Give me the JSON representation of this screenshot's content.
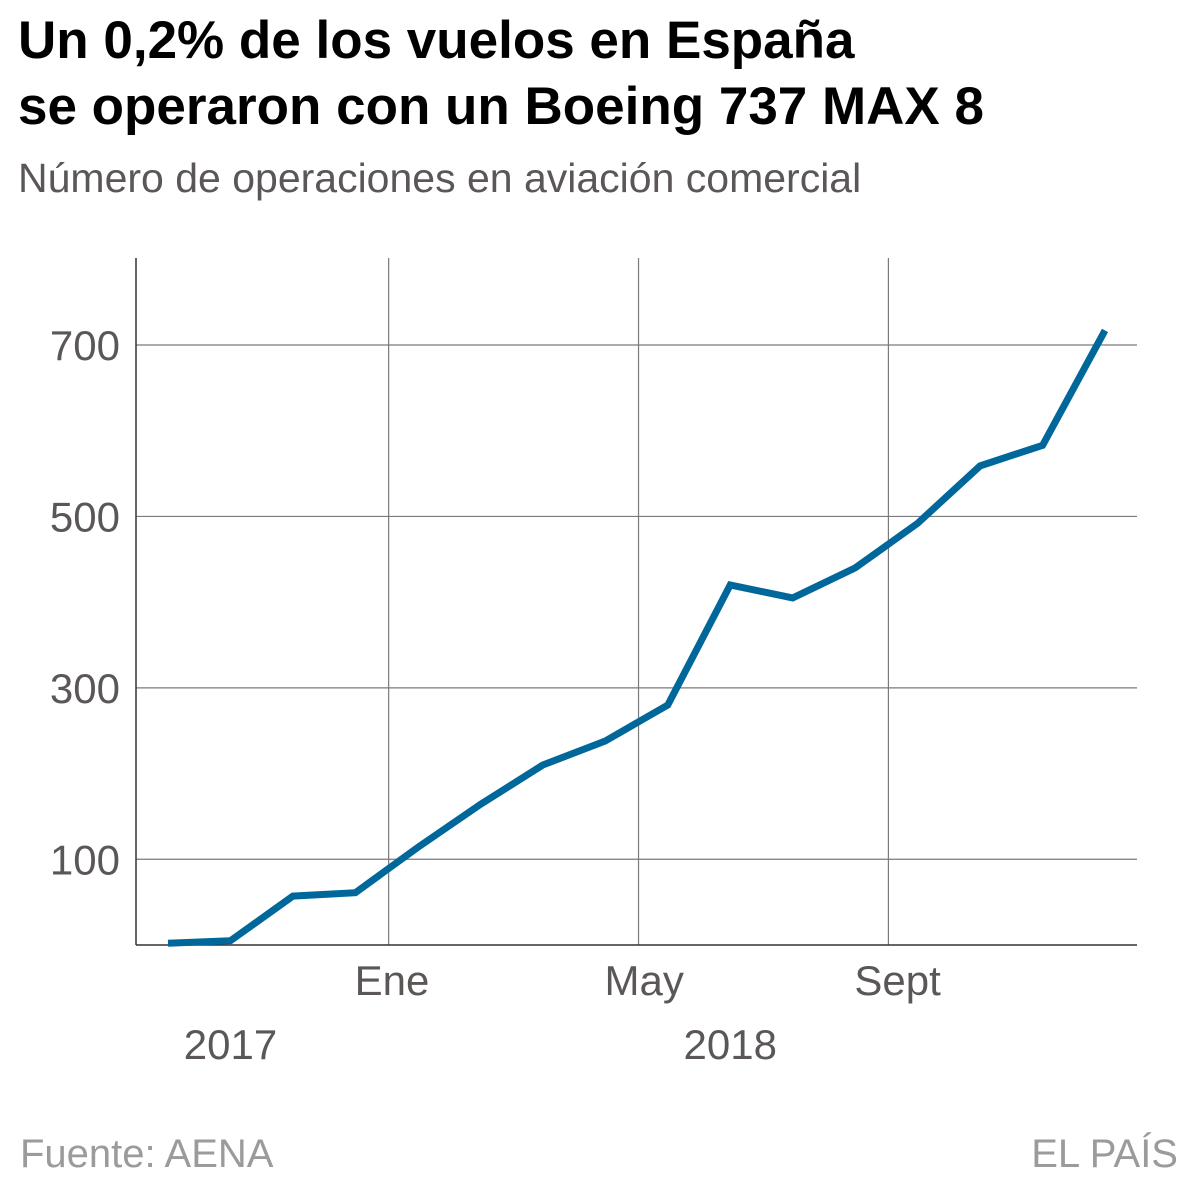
{
  "header": {
    "title_line1": "Un 0,2% de los vuelos en España",
    "title_line2": "se operaron con un Boeing 737 MAX 8",
    "subtitle": "Número de operaciones en aviación comercial"
  },
  "footer": {
    "source": "Fuente: AENA",
    "brand": "EL PAÍS"
  },
  "colors": {
    "line": "#00679b",
    "grid": "#7a7a7a",
    "axis": "#333333",
    "tick_text": "#5c5757",
    "footer_text": "#9b9b9b"
  },
  "chart_data": {
    "type": "line",
    "title": "Un 0,2% de los vuelos en España se operaron con un Boeing 737 MAX 8",
    "subtitle": "Número de operaciones en aviación comercial",
    "xlabel": "",
    "ylabel": "",
    "x": [
      "2017-09",
      "2017-10",
      "2017-11",
      "2017-12",
      "2018-01",
      "2018-02",
      "2018-03",
      "2018-04",
      "2018-05",
      "2018-06",
      "2018-07",
      "2018-08",
      "2018-09",
      "2018-10",
      "2018-11",
      "2018-12"
    ],
    "series": [
      {
        "name": "Operaciones Boeing 737 MAX 8",
        "values": [
          2,
          5,
          57,
          61,
          114,
          164,
          210,
          238,
          280,
          420,
          405,
          440,
          492,
          559,
          583,
          717
        ]
      }
    ],
    "ylim": [
      0,
      800
    ],
    "yticks": [
      100,
      300,
      500,
      700
    ],
    "ytick_labels": [
      "100",
      "300",
      "500",
      "700"
    ],
    "xticks": [
      {
        "label": "Ene",
        "x": "2018-01"
      },
      {
        "label": "May",
        "x": "2018-05"
      },
      {
        "label": "Sept",
        "x": "2018-09"
      }
    ],
    "year_labels": [
      {
        "label": "2017",
        "x": "2017-10"
      },
      {
        "label": "2018",
        "x": "2018-06"
      }
    ],
    "grid": true,
    "legend": "none"
  }
}
